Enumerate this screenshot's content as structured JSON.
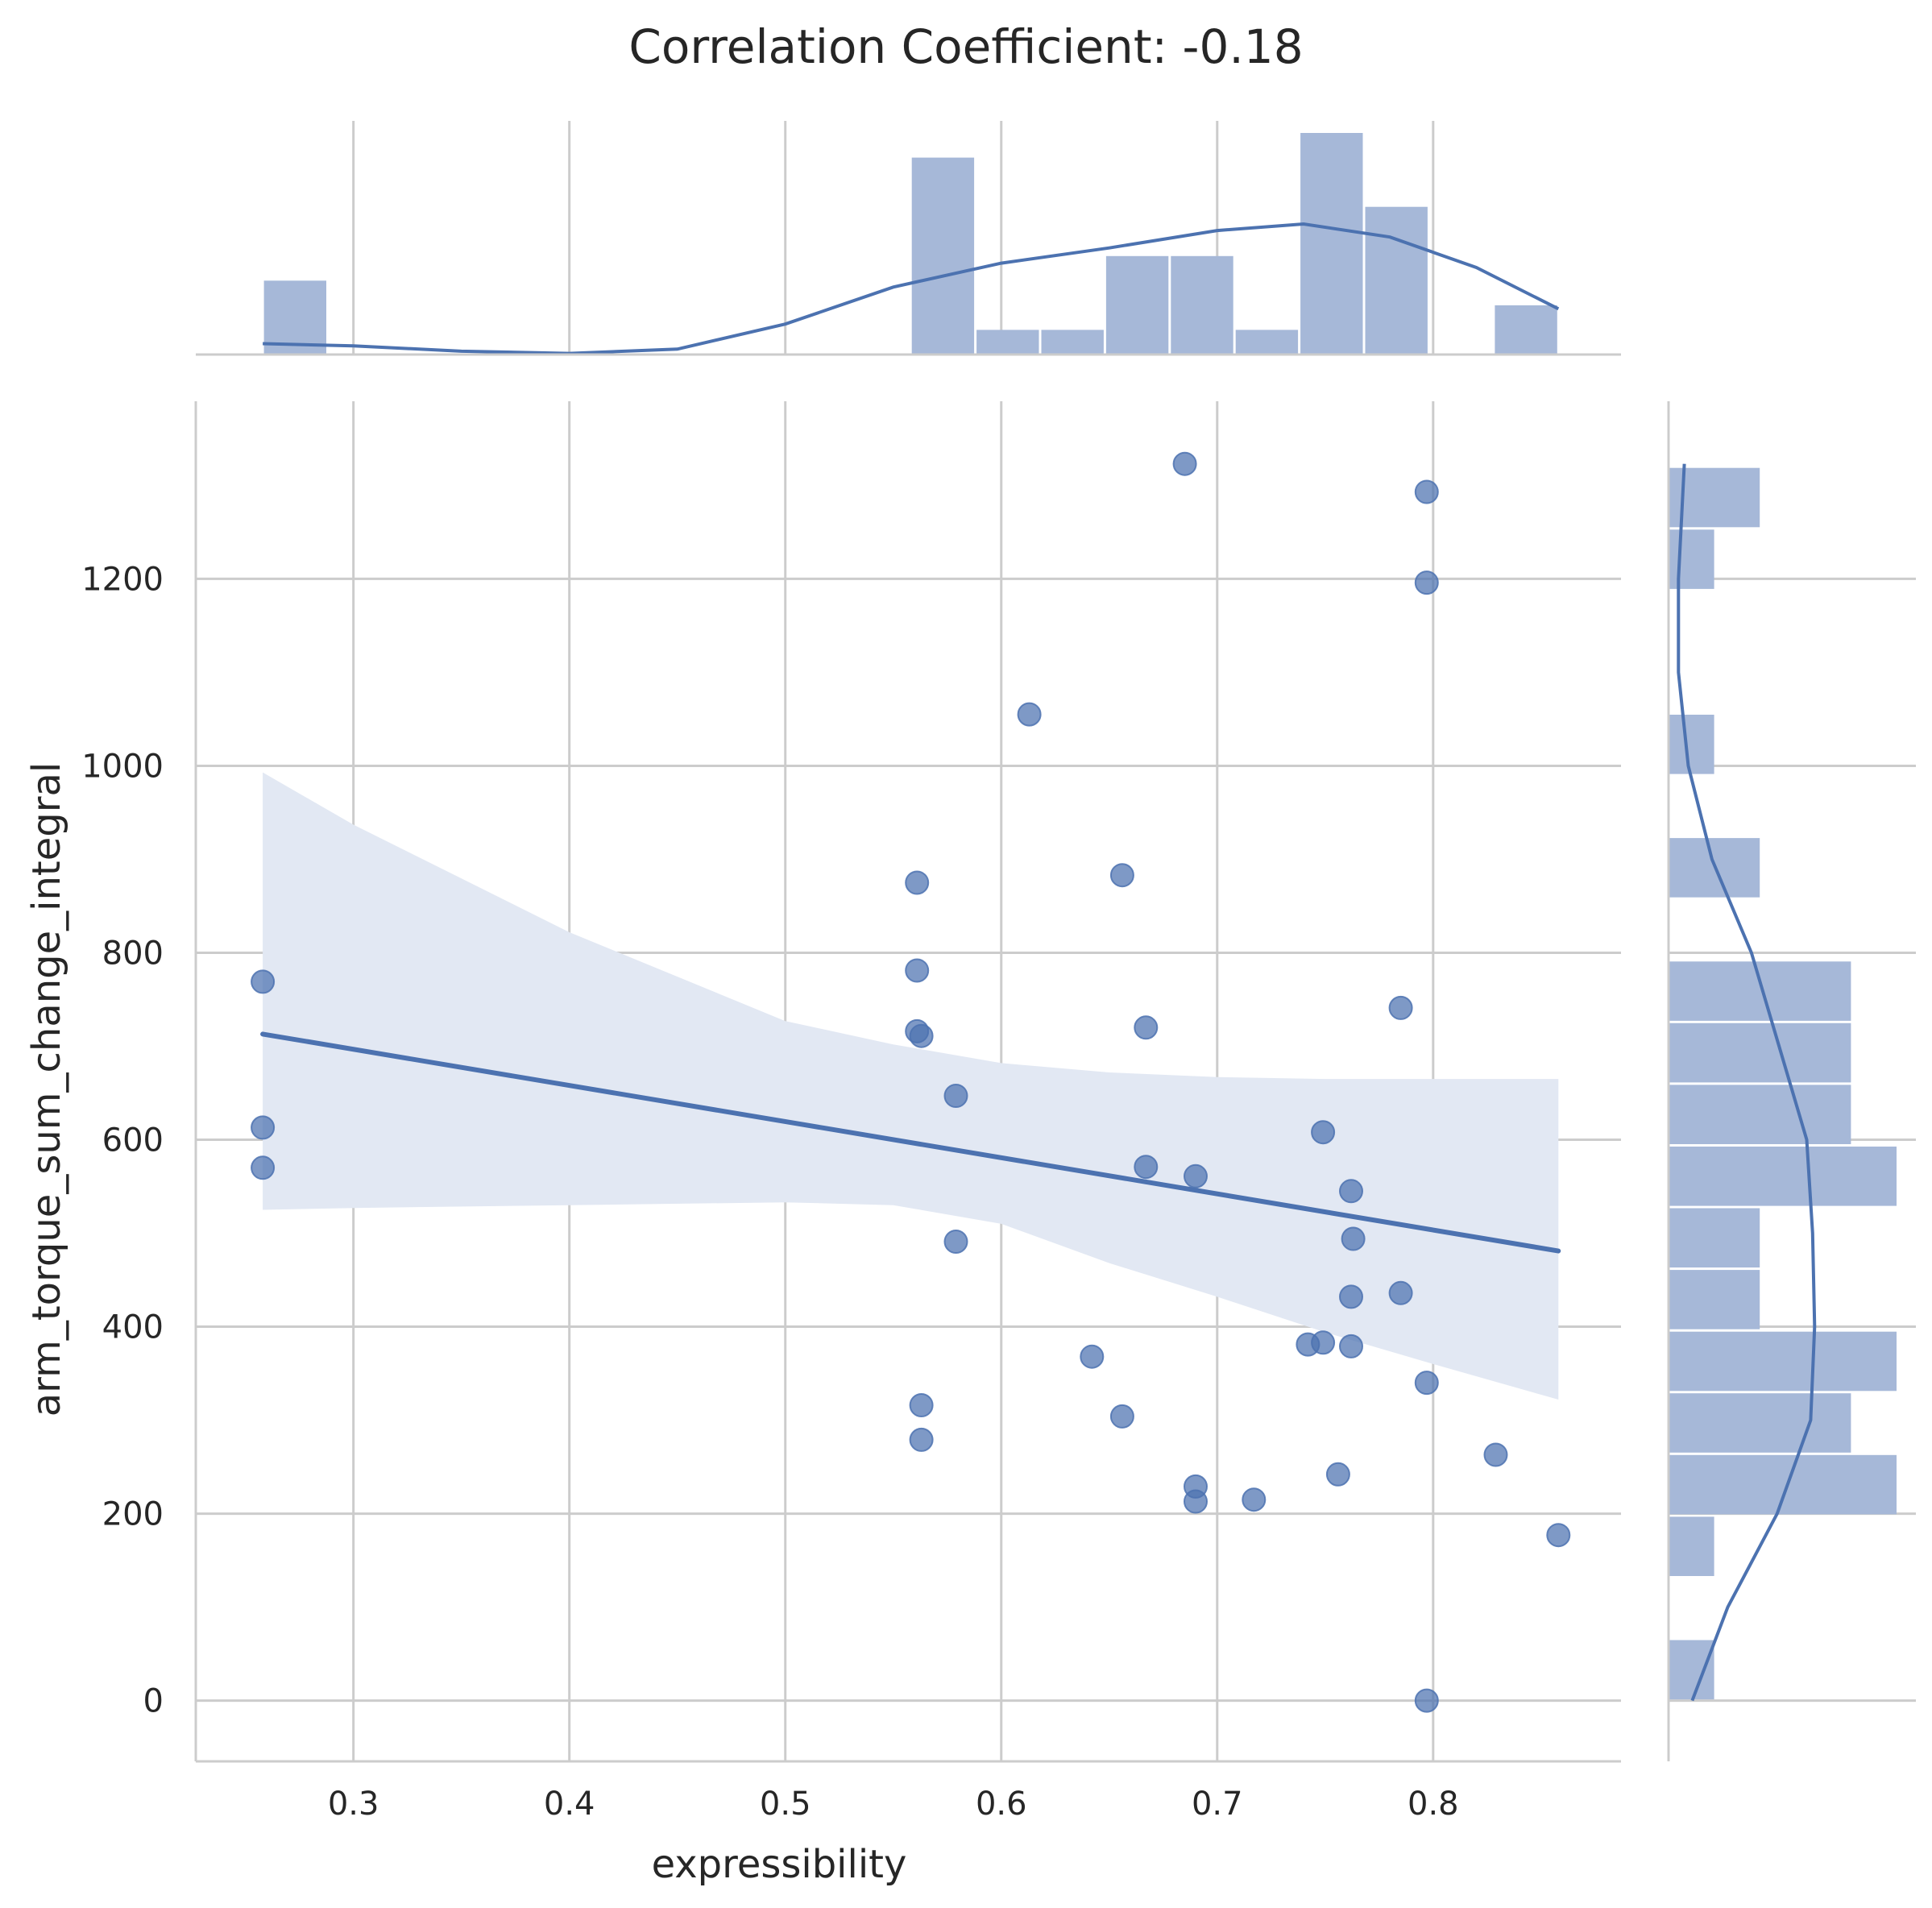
{
  "chart_data": {
    "type": "scatter",
    "title": "Correlation Coefficient: -0.18",
    "xlabel": "expressibility",
    "ylabel": "arm_torque_sum_change_integral",
    "xlim": [
      0.227,
      0.887
    ],
    "ylim": [
      -65,
      1390
    ],
    "xticks": [
      0.3,
      0.4,
      0.5,
      0.6,
      0.7,
      0.8
    ],
    "xtick_labels": [
      "0.3",
      "0.4",
      "0.5",
      "0.6",
      "0.7",
      "0.8"
    ],
    "yticks": [
      0,
      200,
      400,
      600,
      800,
      1000,
      1200
    ],
    "ytick_labels": [
      "0",
      "200",
      "400",
      "600",
      "800",
      "1000",
      "1200"
    ],
    "grid": true,
    "colors": {
      "points": "#4C72B0",
      "regression": "#4C72B0",
      "band": "#E2E8F3",
      "histogram": "#A6B8D8",
      "kde": "#4C72B0",
      "grid": "#CCCCCC",
      "spine": "#CCCCCC"
    },
    "points": {
      "x": [
        0.685,
        0.797,
        0.797,
        0.613,
        0.656,
        0.561,
        0.561,
        0.258,
        0.785,
        0.561,
        0.563,
        0.667,
        0.579,
        0.258,
        0.749,
        0.258,
        0.667,
        0.69,
        0.762,
        0.763,
        0.579,
        0.785,
        0.762,
        0.749,
        0.742,
        0.762,
        0.642,
        0.797,
        0.563,
        0.656,
        0.563,
        0.829,
        0.756,
        0.69,
        0.69,
        0.717,
        0.858,
        0.797
      ],
      "y": [
        1323,
        1293,
        1196,
        1055,
        883,
        875,
        781,
        769,
        741,
        716,
        711,
        720,
        647,
        613,
        608,
        570,
        571,
        561,
        545,
        494,
        491,
        436,
        432,
        383,
        381,
        379,
        368,
        340,
        316,
        304,
        279,
        263,
        242,
        229,
        213,
        215,
        177,
        0
      ]
    },
    "regression": {
      "x": [
        0.258,
        0.858
      ],
      "y": [
        713,
        481
      ]
    },
    "confidence_band": {
      "x": [
        0.258,
        0.3,
        0.4,
        0.5,
        0.55,
        0.6,
        0.65,
        0.7,
        0.75,
        0.8,
        0.858
      ],
      "upper": [
        993,
        937,
        822,
        727,
        702,
        682,
        672,
        667,
        665,
        665,
        665
      ],
      "lower": [
        525,
        527,
        530,
        533,
        530,
        510,
        468,
        432,
        394,
        360,
        322
      ]
    },
    "top_histogram": {
      "bin_edges": [
        0.258,
        0.288,
        0.318,
        0.348,
        0.378,
        0.408,
        0.438,
        0.468,
        0.498,
        0.528,
        0.558,
        0.588,
        0.618,
        0.648,
        0.678,
        0.708,
        0.738,
        0.768,
        0.798,
        0.828,
        0.858
      ],
      "counts": [
        3,
        0,
        0,
        0,
        0,
        0,
        0,
        0,
        0,
        0,
        8,
        1,
        1,
        4,
        4,
        1,
        9,
        6,
        0,
        2
      ]
    },
    "top_kde": {
      "x": [
        0.258,
        0.3,
        0.35,
        0.4,
        0.45,
        0.5,
        0.55,
        0.6,
        0.65,
        0.7,
        0.74,
        0.78,
        0.82,
        0.858
      ],
      "density": [
        0.05,
        0.04,
        0.015,
        0.005,
        0.025,
        0.14,
        0.31,
        0.42,
        0.49,
        0.57,
        0.6,
        0.54,
        0.4,
        0.21
      ]
    },
    "right_histogram": {
      "bin_edges": [
        0,
        66,
        132,
        198,
        264,
        330,
        396,
        462,
        528,
        594,
        660,
        726,
        792,
        858,
        924,
        990,
        1056,
        1122,
        1188,
        1254,
        1320
      ],
      "counts": [
        1,
        0,
        1,
        5,
        4,
        5,
        2,
        2,
        5,
        4,
        4,
        4,
        0,
        2,
        0,
        1,
        0,
        0,
        1,
        2
      ]
    },
    "right_kde": {
      "y": [
        0,
        100,
        200,
        300,
        400,
        500,
        600,
        700,
        800,
        900,
        1000,
        1100,
        1200,
        1323
      ],
      "density": [
        0.12,
        0.3,
        0.55,
        0.72,
        0.74,
        0.73,
        0.7,
        0.56,
        0.42,
        0.22,
        0.1,
        0.05,
        0.05,
        0.08
      ]
    }
  }
}
